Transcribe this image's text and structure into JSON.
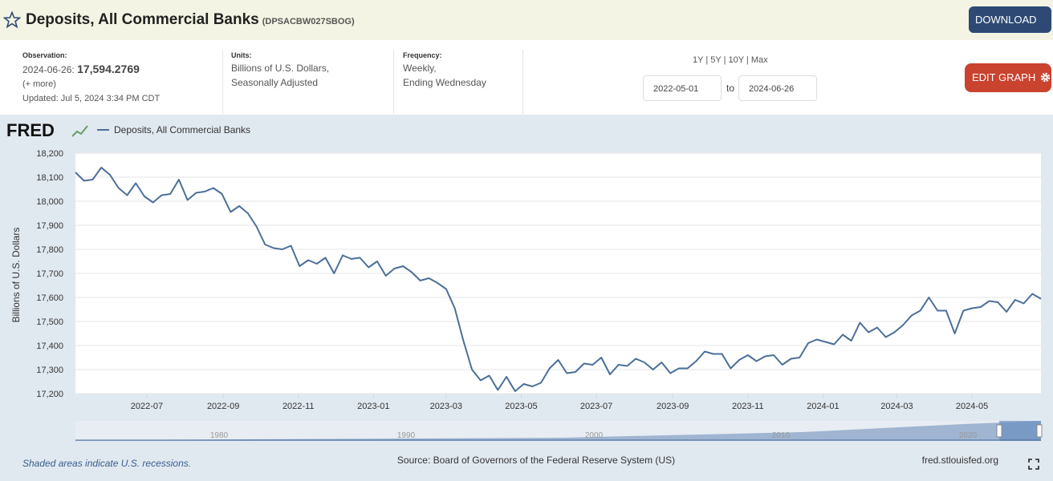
{
  "header": {
    "title": "Deposits, All Commercial Banks",
    "series_id": "(DPSACBW027SBOG)",
    "download": "DOWNLOAD"
  },
  "info": {
    "observation_label": "Observation:",
    "observation_date": "2024-06-26:",
    "observation_value": "17,594.2769",
    "more": "(+ more)",
    "updated_label": "Updated:",
    "updated": "Jul 5, 2024 3:34 PM CDT",
    "units_label": "Units:",
    "units": [
      "Billions of U.S. Dollars,",
      "Seasonally Adjusted"
    ],
    "frequency_label": "Frequency:",
    "frequency": [
      "Weekly,",
      "Ending Wednesday"
    ]
  },
  "range": {
    "presets": [
      "1Y",
      "5Y",
      "10Y",
      "Max"
    ],
    "from": "2022-05-01",
    "to_label": "to",
    "to": "2024-06-26",
    "edit": "EDIT GRAPH"
  },
  "chart_data": {
    "type": "line",
    "brand": "FRED",
    "series": [
      {
        "name": "Deposits, All Commercial Banks",
        "color": "#4b6f99",
        "values": [
          18120,
          18085,
          18090,
          18140,
          18110,
          18055,
          18025,
          18075,
          18020,
          17995,
          18025,
          18030,
          18090,
          18005,
          18035,
          18040,
          18055,
          18030,
          17955,
          17980,
          17950,
          17895,
          17820,
          17805,
          17800,
          17815,
          17730,
          17755,
          17740,
          17765,
          17700,
          17775,
          17760,
          17765,
          17725,
          17750,
          17690,
          17720,
          17730,
          17705,
          17670,
          17680,
          17660,
          17635,
          17555,
          17420,
          17300,
          17255,
          17275,
          17215,
          17270,
          17210,
          17240,
          17230,
          17245,
          17305,
          17340,
          17285,
          17290,
          17325,
          17320,
          17350,
          17280,
          17320,
          17315,
          17345,
          17330,
          17300,
          17330,
          17285,
          17305,
          17305,
          17335,
          17375,
          17365,
          17365,
          17305,
          17340,
          17360,
          17335,
          17355,
          17360,
          17320,
          17345,
          17350,
          17410,
          17425,
          17415,
          17405,
          17445,
          17420,
          17495,
          17455,
          17475,
          17435,
          17455,
          17485,
          17525,
          17545,
          17600,
          17545,
          17545,
          17450,
          17545,
          17555,
          17560,
          17585,
          17580,
          17540,
          17590,
          17575,
          17615,
          17594
        ]
      }
    ],
    "x": [
      "2022-05-04",
      "2022-05-11",
      "2022-05-18",
      "2022-05-25",
      "2022-06-01",
      "2022-06-08",
      "2022-06-15",
      "2022-06-22",
      "2022-06-29",
      "2022-07-06",
      "2022-07-13",
      "2022-07-20",
      "2022-07-27",
      "2022-08-03",
      "2022-08-10",
      "2022-08-17",
      "2022-08-24",
      "2022-08-31",
      "2022-09-07",
      "2022-09-14",
      "2022-09-21",
      "2022-09-28",
      "2022-10-05",
      "2022-10-12",
      "2022-10-19",
      "2022-10-26",
      "2022-11-02",
      "2022-11-09",
      "2022-11-16",
      "2022-11-23",
      "2022-11-30",
      "2022-12-07",
      "2022-12-14",
      "2022-12-21",
      "2022-12-28",
      "2023-01-04",
      "2023-01-11",
      "2023-01-18",
      "2023-01-25",
      "2023-02-01",
      "2023-02-08",
      "2023-02-15",
      "2023-02-22",
      "2023-03-01",
      "2023-03-08",
      "2023-03-15",
      "2023-03-22",
      "2023-03-29",
      "2023-04-05",
      "2023-04-12",
      "2023-04-19",
      "2023-04-26",
      "2023-05-03",
      "2023-05-10",
      "2023-05-17",
      "2023-05-24",
      "2023-05-31",
      "2023-06-07",
      "2023-06-14",
      "2023-06-21",
      "2023-06-28",
      "2023-07-05",
      "2023-07-12",
      "2023-07-19",
      "2023-07-26",
      "2023-08-02",
      "2023-08-09",
      "2023-08-16",
      "2023-08-23",
      "2023-08-30",
      "2023-09-06",
      "2023-09-13",
      "2023-09-20",
      "2023-09-27",
      "2023-10-04",
      "2023-10-11",
      "2023-10-18",
      "2023-10-25",
      "2023-11-01",
      "2023-11-08",
      "2023-11-15",
      "2023-11-22",
      "2023-11-29",
      "2023-12-06",
      "2023-12-13",
      "2023-12-20",
      "2023-12-27",
      "2024-01-03",
      "2024-01-10",
      "2024-01-17",
      "2024-01-24",
      "2024-01-31",
      "2024-02-07",
      "2024-02-14",
      "2024-02-21",
      "2024-02-28",
      "2024-03-06",
      "2024-03-13",
      "2024-03-20",
      "2024-03-27",
      "2024-04-03",
      "2024-04-10",
      "2024-04-17",
      "2024-04-24",
      "2024-05-01",
      "2024-05-08",
      "2024-05-15",
      "2024-05-22",
      "2024-05-29",
      "2024-06-05",
      "2024-06-12",
      "2024-06-19",
      "2024-06-26"
    ],
    "xlim": [
      "2022-05-04",
      "2024-06-26"
    ],
    "xticks": [
      "2022-07",
      "2022-09",
      "2022-11",
      "2023-01",
      "2023-03",
      "2023-05",
      "2023-07",
      "2023-09",
      "2023-11",
      "2024-01",
      "2024-03",
      "2024-05"
    ],
    "ylim": [
      17200,
      18200
    ],
    "yticks": [
      {
        "value": 17200,
        "label": "17,200"
      },
      {
        "value": 17300,
        "label": "17,300"
      },
      {
        "value": 17400,
        "label": "17,400"
      },
      {
        "value": 17500,
        "label": "17,500"
      },
      {
        "value": 17600,
        "label": "17,600"
      },
      {
        "value": 17700,
        "label": "17,700"
      },
      {
        "value": 17800,
        "label": "17,800"
      },
      {
        "value": 17900,
        "label": "17,900"
      },
      {
        "value": 18000,
        "label": "18,000"
      },
      {
        "value": 18100,
        "label": "18,100"
      },
      {
        "value": 18200,
        "label": "18,200"
      }
    ],
    "grid": true,
    "ylabel": "Billions of U.S. Dollars",
    "navigator_ticks": [
      "1980",
      "1990",
      "2000",
      "2010",
      "2020"
    ],
    "note": "Shaded areas indicate U.S. recessions.",
    "source": "Source: Board of Governors of the Federal Reserve System (US)",
    "site": "fred.stlouisfed.org"
  }
}
